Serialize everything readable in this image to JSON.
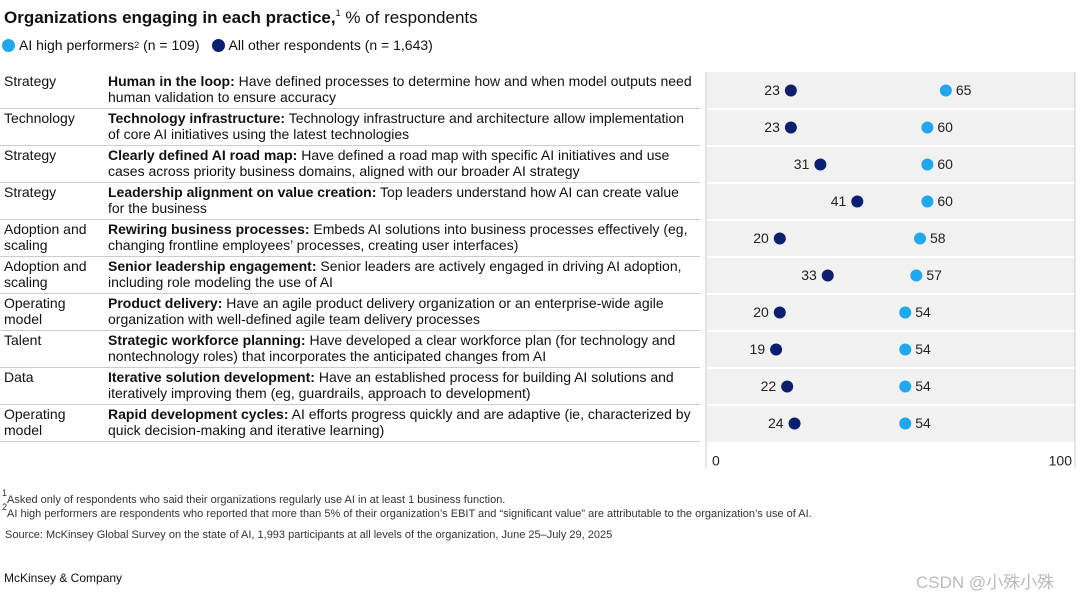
{
  "chart_data": {
    "type": "dot",
    "title": "Organizations engaging in each practice,",
    "title_note": "1",
    "subtitle": "% of respondents",
    "groups": [
      "Strategy",
      "Technology",
      "Strategy",
      "Strategy",
      "Adoption and scaling",
      "Adoption and scaling",
      "Operating model",
      "Talent",
      "Data",
      "Operating model"
    ],
    "categories": [
      "Human in the loop:",
      "Technology infrastructure:",
      "Clearly defined AI road map:",
      "Leadership alignment on value creation:",
      "Rewiring business processes:",
      "Senior leadership engagement:",
      "Product delivery:",
      "Strategic workforce planning:",
      "Iterative solution development:",
      "Rapid development cycles:"
    ],
    "descriptions": [
      "Have defined processes to determine how and when model outputs need human validation to ensure accuracy",
      "Technology infrastructure and architecture allow implementation of core AI initiatives using the latest technologies",
      "Have defined a road map with specific AI initiatives and use cases across priority business domains, aligned with our broader AI strategy",
      "Top leaders understand how AI can create value for the business",
      "Embeds AI solutions into business processes effectively (eg, changing frontline employees’ processes, creating user interfaces)",
      "Senior leaders are actively engaged in driving AI adoption, including role modeling the use of AI",
      "Have an agile product delivery organization or an enterprise-wide agile organization with well-defined agile team delivery processes",
      "Have developed a clear workforce plan (for technology and nontechnology roles) that incorporates the anticipated changes from AI",
      "Have an established process for building AI solutions and iteratively improving them (eg, guardrails, approach to development)",
      "AI efforts progress quickly and are adaptive (ie, character­ized by quick decision-making and iterative learning)"
    ],
    "series": [
      {
        "name": "AI high performers",
        "name_note": "2",
        "n_label": "(n = 109)",
        "color": "#22a7eb",
        "values": [
          65,
          60,
          60,
          60,
          58,
          57,
          54,
          54,
          54,
          54
        ]
      },
      {
        "name": "All other respondents (n = 1,643)",
        "color": "#0c1f6e",
        "values": [
          23,
          23,
          31,
          41,
          20,
          33,
          20,
          19,
          22,
          24
        ]
      }
    ],
    "xlim": [
      0,
      100
    ],
    "xticks": [
      0,
      100
    ]
  },
  "footnotes": [
    {
      "mark": "1",
      "text": "Asked only of respondents who said their organizations regularly use AI in at least 1 business function."
    },
    {
      "mark": "2",
      "text": "AI high performers are respondents who reported that more than 5% of their organization’s EBIT and “significant value” are attributable to the organization’s use of AI."
    }
  ],
  "source": "Source: McKinsey Global Survey on the state of AI, 1,993 participants at all levels of the organization, June 25–July 29, 2025",
  "brand": "McKinsey & Company",
  "watermark": "CSDN @小殊小殊"
}
